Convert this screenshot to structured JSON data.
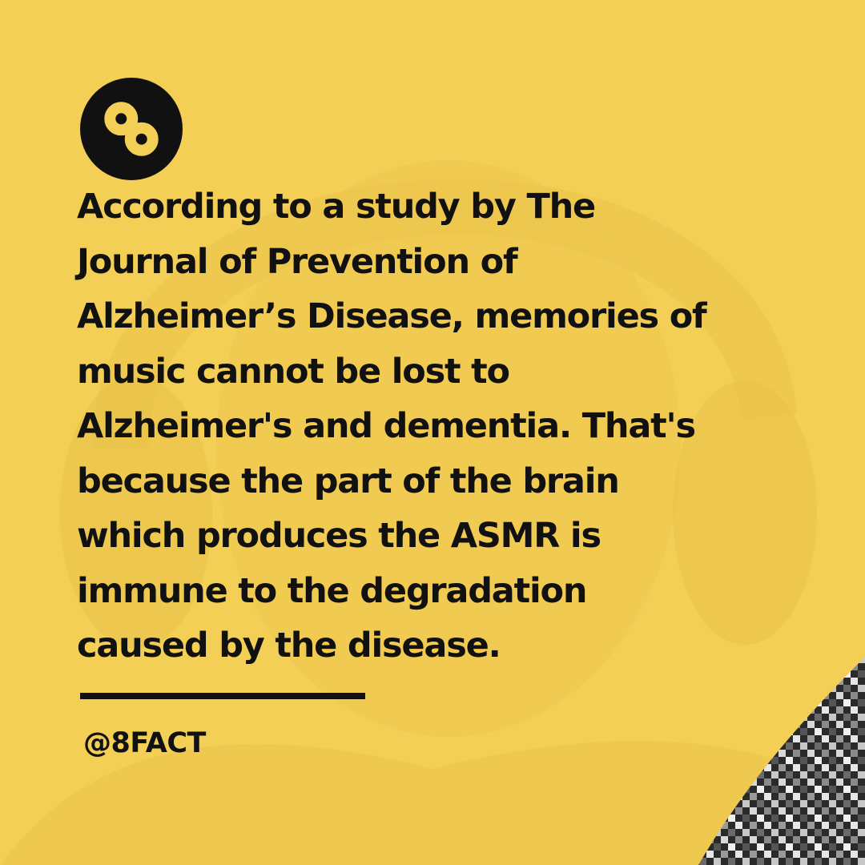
{
  "post": {
    "fact_text": "According to a study by The\nJournal of Prevention of\nAlzheimer’s Disease, memories of\nmusic cannot be lost to\nAlzheimer's and dementia. That's\nbecause the part of the brain\nwhich produces the ASMR is\nimmune to the degradation\ncaused by the disease.",
    "handle": "@8FACT"
  },
  "colors": {
    "background": "#f4cf55",
    "text": "#111111",
    "logo_background": "#111111",
    "logo_glyph": "#f4cf55"
  },
  "icons": {
    "logo": "infinity-eight-icon"
  }
}
